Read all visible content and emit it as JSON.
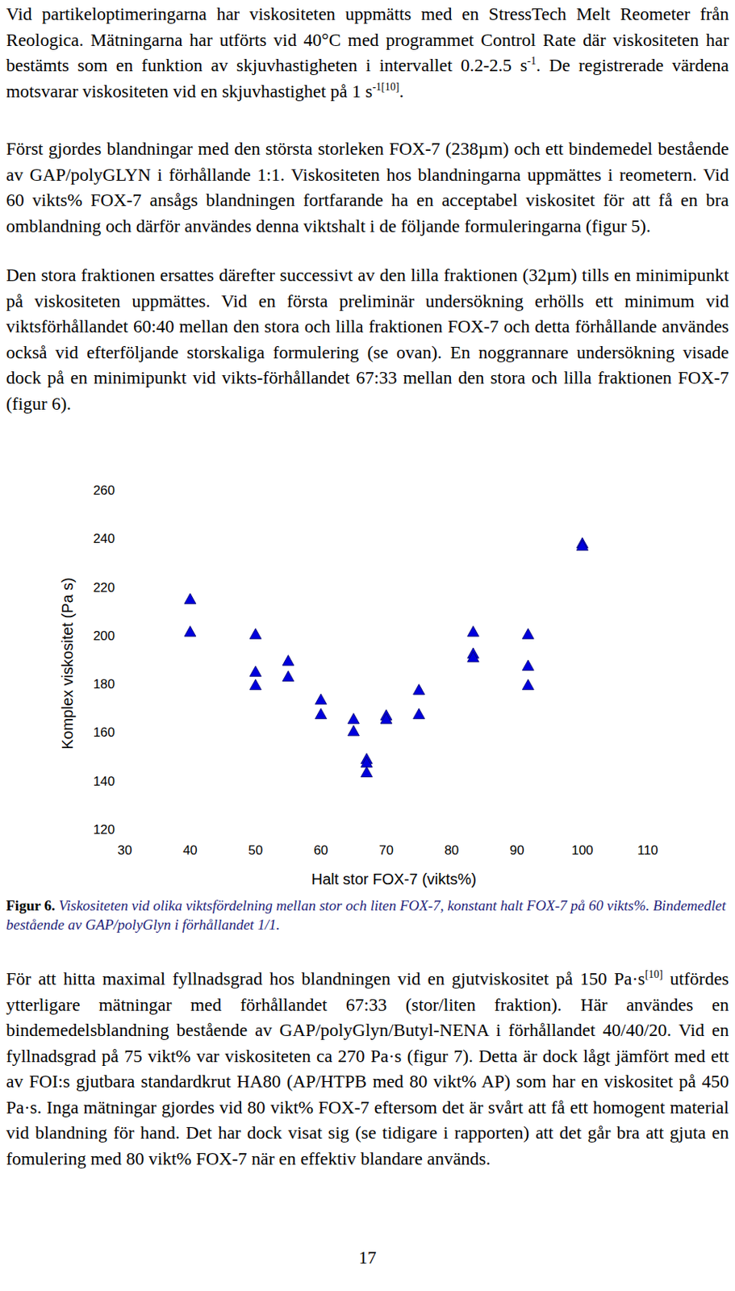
{
  "paragraphs_top": [
    [
      "Vid partikeloptimeringarna har viskositeten uppmätts med en StressTech Melt Reometer från Reologica. Mätningarna har utförts vid 40°C med programmet Control Rate där viskositeten har bestämts som en funktion av skjuvhastigheten i intervallet 0.2-2.5 s",
      {
        "sup": "-1"
      },
      ". De registrerade värdena motsvarar viskositeten vid en skjuvhastighet på 1 s",
      {
        "sup": "-1[10]"
      },
      "."
    ],
    [
      "Först gjordes blandningar med den största storleken FOX-7 (238µm) och ett bindemedel bestående av GAP/polyGLYN i förhållande 1:1. Viskositeten hos blandningarna uppmättes i reometern. Vid 60 vikts% FOX-7 ansågs blandningen fortfarande ha en acceptabel viskositet för att få en bra omblandning och därför användes denna viktshalt i de följande formuleringarna (figur 5)."
    ],
    [
      "Den stora fraktionen ersattes därefter successivt av den lilla fraktionen (32µm) tills en minimipunkt på viskositeten uppmättes. Vid en första preliminär undersökning erhölls ett minimum vid viktsförhållandet 60:40 mellan den stora och lilla fraktionen FOX-7 och detta förhållande användes också vid efterföljande storskaliga formulering (se ovan). En noggrannare undersökning visade dock på en minimipunkt vid vikts-förhållandet 67:33 mellan den stora och lilla fraktionen FOX-7 (figur 6)."
    ]
  ],
  "chart_data": {
    "type": "scatter",
    "x_label": "Halt stor FOX-7 (vikts%)",
    "y_label": "Komplex viskositet (Pa s)",
    "x": [
      40,
      40,
      50,
      50,
      50,
      55,
      55,
      60,
      60,
      65,
      65,
      67,
      67,
      67,
      70,
      70,
      75,
      75,
      83.3,
      83.3,
      83.3,
      91.7,
      91.7,
      91.7,
      100,
      100
    ],
    "values": [
      215,
      201.5,
      200.5,
      185,
      179.5,
      189.5,
      183,
      173.5,
      167.5,
      165.5,
      160.5,
      149,
      147.5,
      143.5,
      167,
      165.5,
      177.5,
      167.5,
      201.5,
      192.5,
      191,
      200.5,
      187.5,
      179.5,
      238,
      237
    ],
    "color": "#0000dd",
    "marker": "triangle",
    "grid": false,
    "xlim": [
      30,
      110
    ],
    "ylim": [
      120,
      260
    ],
    "xticks": [
      30,
      40,
      50,
      60,
      70,
      80,
      90,
      100,
      110
    ],
    "yticks": [
      120,
      140,
      160,
      180,
      200,
      220,
      240,
      260
    ]
  },
  "caption": {
    "label": "Figur 6.",
    "text": "Viskositeten vid olika viktsfördelning mellan stor och liten FOX-7, konstant halt FOX-7 på 60 vikts%. Bindemedlet bestående av GAP/polyGlyn i förhållandet 1/1."
  },
  "paragraphs_bottom": [
    [
      "För att hitta maximal fyllnadsgrad hos blandningen vid en gjutviskositet på 150 Pa·s",
      {
        "sup": "[10]"
      },
      " utfördes ytterligare mätningar med förhållandet 67:33 (stor/liten fraktion). Här användes en bindemedelsblandning bestående av GAP/polyGlyn/Butyl-NENA i förhållandet 40/40/20. Vid en fyllnadsgrad på 75 vikt% var viskositeten ca 270 Pa·s (figur 7). Detta är dock lågt jämfört med ett av FOI:s gjutbara standardkrut HA80 (AP/HTPB med 80 vikt% AP) som har en viskositet på 450 Pa·s. Inga mätningar gjordes vid 80 vikt% FOX-7 eftersom det är svårt att få ett homogent material vid blandning för hand. Det har dock visat sig (se tidigare i rapporten) att det går bra att gjuta en fomulering med 80 vikt% FOX-7 när en effektiv blandare används."
    ]
  ],
  "page_number": "17"
}
